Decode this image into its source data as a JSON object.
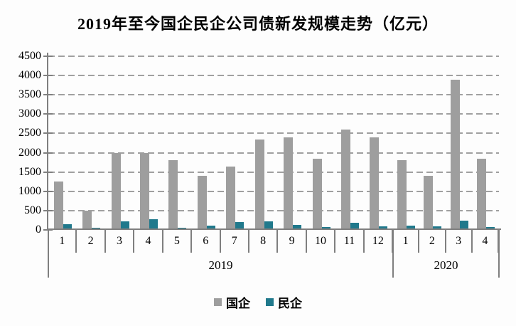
{
  "chart_data": {
    "type": "bar",
    "title": "2019年至今国企民企公司债新发规模走势（亿元）",
    "categories": [
      "1",
      "2",
      "3",
      "4",
      "5",
      "6",
      "7",
      "8",
      "9",
      "10",
      "11",
      "12",
      "1",
      "2",
      "3",
      "4"
    ],
    "year_groups": [
      {
        "label": "2019",
        "months": 12
      },
      {
        "label": "2020",
        "months": 4
      }
    ],
    "series": [
      {
        "name": "国企",
        "color": "#9e9e9e",
        "values": [
          1250,
          500,
          2000,
          2000,
          1800,
          1400,
          1650,
          2350,
          2400,
          1850,
          2600,
          2400,
          1800,
          1400,
          3900,
          1850
        ]
      },
      {
        "name": "民企",
        "color": "#20798c",
        "values": [
          150,
          60,
          230,
          270,
          50,
          110,
          200,
          220,
          135,
          70,
          180,
          95,
          115,
          90,
          235,
          70
        ]
      }
    ],
    "ylim": [
      0,
      4500
    ],
    "y_ticks": [
      0,
      500,
      1000,
      1500,
      2000,
      2500,
      3000,
      3500,
      4000,
      4500
    ],
    "grid": "dashed-horizontal",
    "legend_position": "bottom"
  },
  "colors": {
    "axis": "#7f7f7f",
    "gridline": "#a0a0a0",
    "text": "#000000",
    "background": "#fdfdfd"
  }
}
